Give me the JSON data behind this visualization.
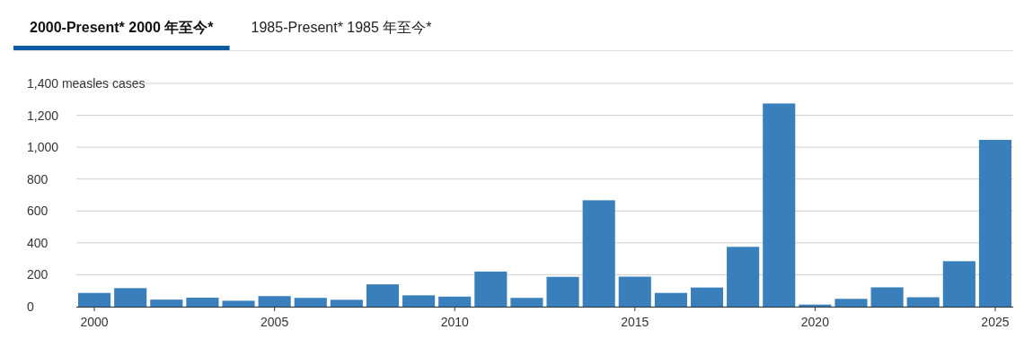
{
  "chart_data": {
    "type": "bar",
    "title": "2000-Present* 2000 年至今*",
    "subtitle": "1985-Present* 1985 年至今*",
    "x": [
      2000,
      2001,
      2002,
      2003,
      2004,
      2005,
      2006,
      2007,
      2008,
      2009,
      2010,
      2011,
      2012,
      2013,
      2014,
      2015,
      2016,
      2017,
      2018,
      2019,
      2020,
      2021,
      2022,
      2023,
      2024,
      2025
    ],
    "values": [
      86,
      116,
      44,
      56,
      37,
      66,
      55,
      43,
      140,
      71,
      63,
      220,
      55,
      187,
      667,
      188,
      86,
      120,
      375,
      1274,
      13,
      49,
      121,
      59,
      285,
      1046
    ],
    "color": "#397fbb",
    "xlim": [
      1999.5,
      2025.5
    ],
    "xticks": [
      2000,
      2005,
      2010,
      2015,
      2020,
      2025
    ],
    "ylim": [
      0,
      1400
    ],
    "yticks": [
      {
        "value": 0,
        "label": "0"
      },
      {
        "value": 200,
        "label": "200"
      },
      {
        "value": 400,
        "label": "400"
      },
      {
        "value": 600,
        "label": "600"
      },
      {
        "value": 800,
        "label": "800"
      },
      {
        "value": 1000,
        "label": "1,000"
      },
      {
        "value": 1200,
        "label": "1,200"
      },
      {
        "value": 1400,
        "label": "1,400 measles cases"
      }
    ],
    "grid": "y"
  }
}
